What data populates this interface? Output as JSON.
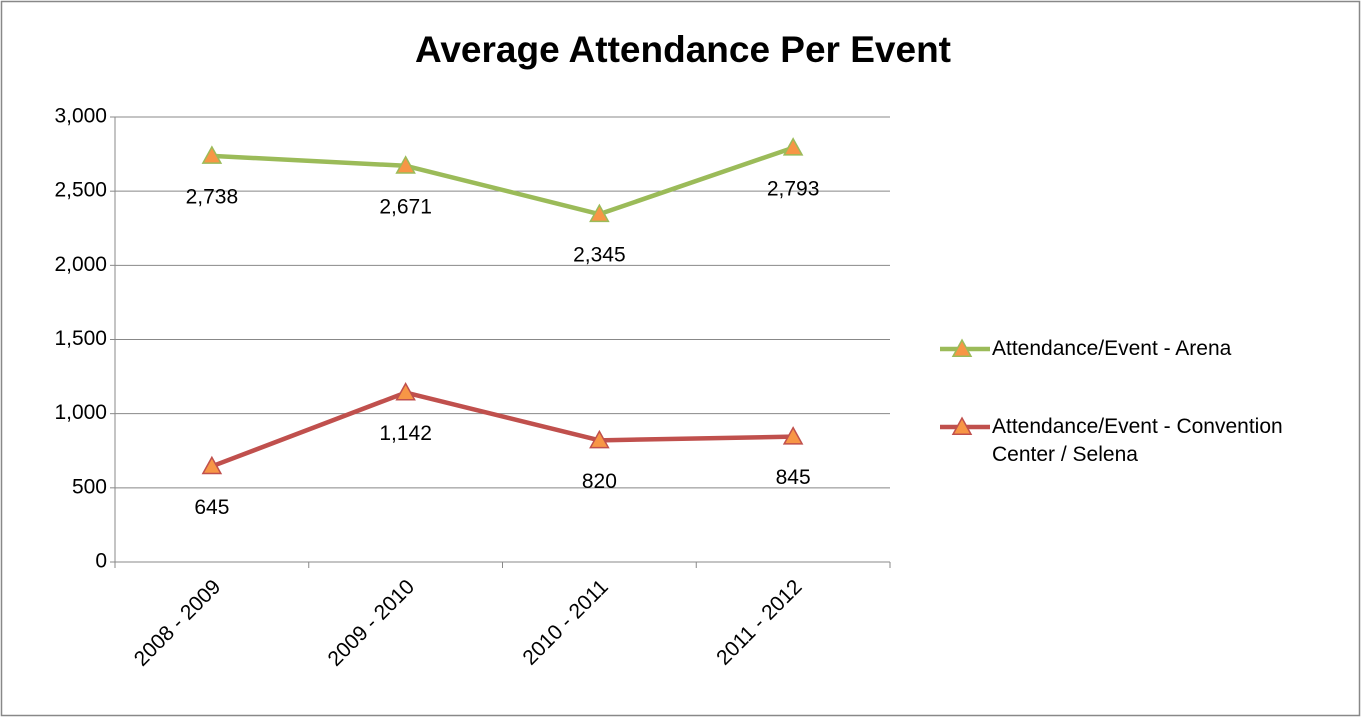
{
  "chart_data": {
    "type": "line",
    "title": "Average Attendance Per Event",
    "categories": [
      "2008 - 2009",
      "2009 - 2010",
      "2010 - 2011",
      "2011 - 2012"
    ],
    "series": [
      {
        "name": "Attendance/Event - Arena",
        "color": "#9bbb59",
        "marker_color": "#f79646",
        "values": [
          2738,
          2671,
          2345,
          2793
        ],
        "value_labels": [
          "2,738",
          "2,671",
          "2,345",
          "2,793"
        ]
      },
      {
        "name": "Attendance/Event - Convention Center / Selena",
        "color": "#c0504d",
        "marker_color": "#f79646",
        "values": [
          645,
          1142,
          820,
          845
        ],
        "value_labels": [
          "645",
          "1,142",
          "820",
          "845"
        ]
      }
    ],
    "ylim": [
      0,
      3000
    ],
    "yticks": [
      0,
      500,
      {
        "value": 1000,
        "label": "1,000"
      },
      {
        "value": 1500,
        "label": "1,500"
      },
      {
        "value": 2000,
        "label": "2,000"
      },
      {
        "value": 2500,
        "label": "2,500"
      },
      {
        "value": 3000,
        "label": "3,000"
      }
    ],
    "grid": true,
    "legend": "right"
  }
}
